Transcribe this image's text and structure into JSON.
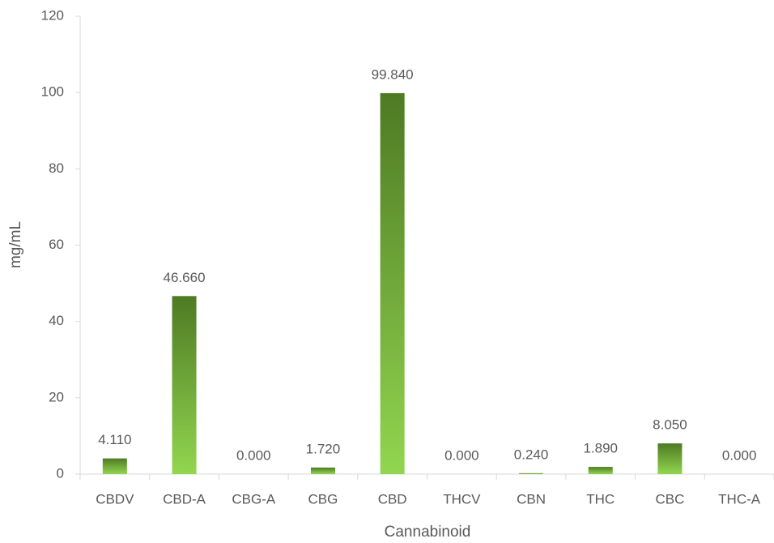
{
  "chart_data": {
    "type": "bar",
    "categories": [
      "CBDV",
      "CBD-A",
      "CBG-A",
      "CBG",
      "CBD",
      "THCV",
      "CBN",
      "THC",
      "CBC",
      "THC-A"
    ],
    "values": [
      4.11,
      46.66,
      0,
      1.72,
      99.84,
      0,
      0.24,
      1.89,
      8.05,
      0
    ],
    "value_labels": [
      "4.110",
      "46.660",
      "0.000",
      "1.720",
      "99.840",
      "0.000",
      "0.240",
      "1.890",
      "8.050",
      "0.000"
    ],
    "gradient": [
      "#4e7a24",
      "#92d64f"
    ],
    "xlabel": "Cannabinoid",
    "ylabel": "mg/mL",
    "ylim": [
      0,
      120
    ],
    "yticks": [
      0,
      20,
      40,
      60,
      80,
      100,
      120
    ],
    "grid": false
  }
}
